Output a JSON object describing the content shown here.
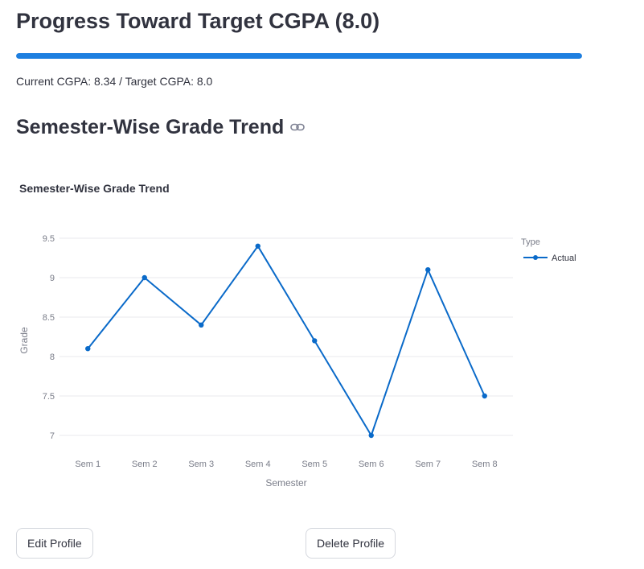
{
  "progress": {
    "title": "Progress Toward Target CGPA (8.0)",
    "fill_fraction": 1.0,
    "bar_color": "#1e7fe0",
    "caption": "Current CGPA: 8.34 / Target CGPA: 8.0"
  },
  "trend_section": {
    "header": "Semester-Wise Grade Trend",
    "link_icon": "link-icon"
  },
  "chart_data": {
    "type": "line",
    "title": "Semester-Wise Grade Trend",
    "xlabel": "Semester",
    "ylabel": "Grade",
    "categories": [
      "Sem 1",
      "Sem 2",
      "Sem 3",
      "Sem 4",
      "Sem 5",
      "Sem 6",
      "Sem 7",
      "Sem 8"
    ],
    "series": [
      {
        "name": "Actual",
        "values": [
          8.1,
          9.0,
          8.4,
          9.4,
          8.2,
          7.0,
          9.1,
          7.5
        ],
        "color": "#0a6ac9"
      }
    ],
    "ylim": [
      7,
      9.5
    ],
    "yticks": [
      "7",
      "7.5",
      "8",
      "8.5",
      "9",
      "9.5"
    ],
    "legend_title": "Type",
    "legend_position": "top-right",
    "grid": true
  },
  "buttons": {
    "edit_label": "Edit Profile",
    "delete_label": "Delete Profile"
  }
}
